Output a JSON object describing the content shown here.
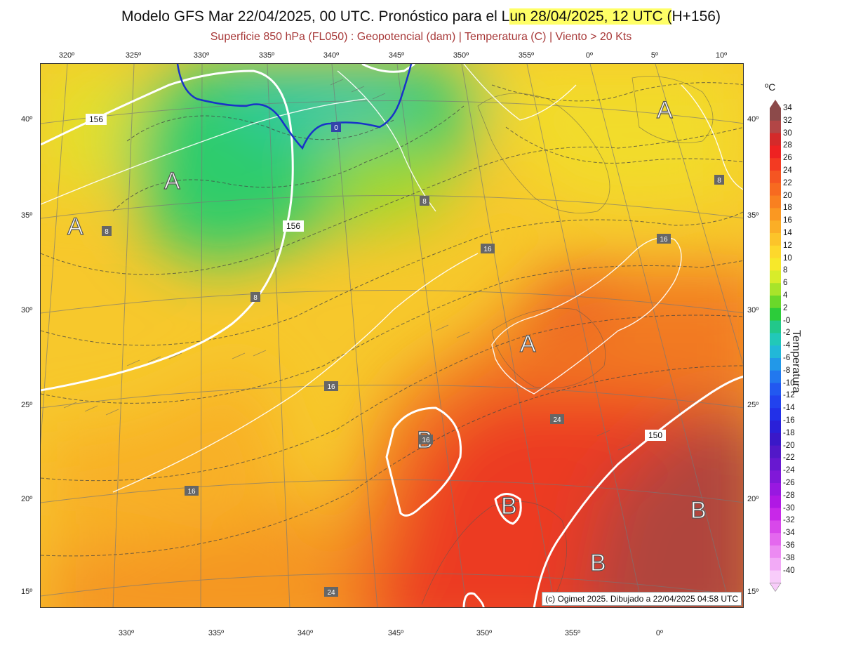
{
  "title": {
    "part1": "Modelo GFS Mar 22/04/2025, 00 UTC. Pronóstico para el L",
    "part2": "un 28/04/2025, 12 UTC (",
    "part3": "H+156)"
  },
  "subtitle": "Superficie 850 hPa (FL050) : Geopotencial (dam) | Temperatura (C) | Viento > 20 Kts",
  "axes": {
    "top": [
      "320º",
      "325º",
      "330º",
      "335º",
      "340º",
      "345º",
      "350º",
      "355º",
      "0º",
      "5º",
      "10º"
    ],
    "bottom": [
      "330º",
      "335º",
      "340º",
      "345º",
      "350º",
      "355º",
      "0º"
    ],
    "left": [
      "40º",
      "35º",
      "30º",
      "25º",
      "20º",
      "15º"
    ],
    "right": [
      "40º",
      "35º",
      "30º",
      "25º",
      "20º",
      "15º"
    ]
  },
  "pressure_labels": {
    "high": "A",
    "low": "B"
  },
  "contour_labels": {
    "geopotential": [
      "156",
      "156",
      "150"
    ],
    "temperature": [
      "8",
      "8",
      "8",
      "8",
      "16",
      "16",
      "16",
      "16",
      "16",
      "24",
      "24",
      "0"
    ]
  },
  "copyright": "(c) Ogimet 2025. Dibujado a 22/04/2025 04:58 UTC",
  "legend": {
    "unit": "ºC",
    "title": "Temperatura",
    "labels": [
      "34",
      "32",
      "30",
      "28",
      "26",
      "24",
      "22",
      "20",
      "18",
      "16",
      "14",
      "12",
      "10",
      "8",
      "6",
      "4",
      "2",
      "-0",
      "-2",
      "-4",
      "-6",
      "-8",
      "-10",
      "-12",
      "-14",
      "-16",
      "-18",
      "-20",
      "-22",
      "-24",
      "-26",
      "-28",
      "-30",
      "-32",
      "-34",
      "-36",
      "-38",
      "-40"
    ],
    "colors": [
      "#8c4a4a",
      "#b24646",
      "#d42a2a",
      "#ee2222",
      "#f33a22",
      "#f55522",
      "#f76a20",
      "#f98020",
      "#fa9822",
      "#fbae26",
      "#fcc42a",
      "#fdd82c",
      "#f7e82a",
      "#d8ec2a",
      "#a8e42a",
      "#6ad82a",
      "#2ccc3a",
      "#22c88a",
      "#22c8b8",
      "#22b8d8",
      "#2298e8",
      "#2278ee",
      "#2258f0",
      "#2242ee",
      "#2230e8",
      "#2a20d8",
      "#3a18c8",
      "#5218c8",
      "#6818d0",
      "#8018d8",
      "#9818e0",
      "#b018e4",
      "#c828e8",
      "#d848ea",
      "#e468ee",
      "#ec8af2",
      "#f2aaf6",
      "#f8ccfa"
    ]
  }
}
